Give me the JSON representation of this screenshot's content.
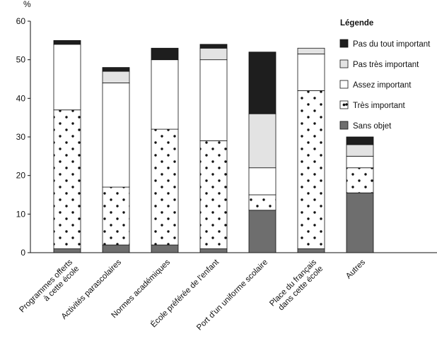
{
  "chart_data": {
    "type": "bar",
    "stacked": true,
    "ylabel": "%",
    "ylim": [
      0,
      60
    ],
    "yticks": [
      0,
      10,
      20,
      30,
      40,
      50,
      60
    ],
    "categories": [
      [
        "Programmes offerts",
        "à cette école"
      ],
      [
        "Activités parascolaires"
      ],
      [
        "Normes académiques"
      ],
      [
        "École préférée de l'enfant"
      ],
      [
        "Port d'un uniforme scolaire"
      ],
      [
        "Place du français",
        "dans cette école"
      ],
      [
        "Autres"
      ]
    ],
    "series": [
      {
        "name": "Sans objet",
        "pattern": "gray",
        "values": [
          1,
          2,
          2,
          1,
          11,
          1,
          15.5
        ]
      },
      {
        "name": "Très important",
        "pattern": "dots",
        "values": [
          36,
          15,
          30,
          28,
          4,
          41,
          6.5
        ]
      },
      {
        "name": "Assez important",
        "pattern": "white",
        "values": [
          17,
          27,
          18,
          21,
          7,
          9.5,
          3
        ]
      },
      {
        "name": "Pas très important",
        "pattern": "lightgray",
        "values": [
          0,
          3,
          0,
          3,
          14,
          1.5,
          3
        ]
      },
      {
        "name": "Pas du tout important",
        "pattern": "black",
        "values": [
          1,
          1,
          3,
          1,
          16,
          0,
          2
        ]
      }
    ],
    "legend": {
      "title": "Légende",
      "position": "top-right"
    },
    "grid": false,
    "colors": {
      "black": "#1e1e1e",
      "lightgray": "#e3e3e3",
      "white": "#ffffff",
      "dots": "#111111",
      "gray": "#6e6e6e"
    }
  }
}
